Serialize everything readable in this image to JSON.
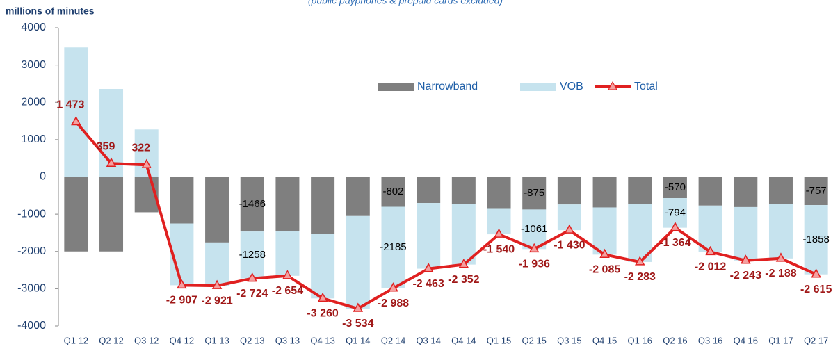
{
  "chart_data": {
    "type": "bar",
    "subtitle": "(public payphones & prepaid cards excluded)",
    "y_label": "millions of minutes",
    "categories": [
      "Q1 12",
      "Q2 12",
      "Q3 12",
      "Q4 12",
      "Q1 13",
      "Q2 13",
      "Q3 13",
      "Q4 13",
      "Q1 14",
      "Q2 14",
      "Q3 14",
      "Q4 14",
      "Q1 15",
      "Q2 15",
      "Q3 15",
      "Q4 15",
      "Q1 16",
      "Q2 16",
      "Q3 16",
      "Q4 16",
      "Q1 17",
      "Q2 17"
    ],
    "series": [
      {
        "name": "Narrowband",
        "color": "#7f7f7f",
        "values": [
          -2000,
          -2000,
          -950,
          -1250,
          -1760,
          -1466,
          -1450,
          -1530,
          -1050,
          -802,
          -700,
          -720,
          -840,
          -875,
          -740,
          -820,
          -720,
          -570,
          -770,
          -810,
          -720,
          -757
        ],
        "value_labels": [
          null,
          null,
          null,
          null,
          null,
          "-1466",
          null,
          null,
          null,
          "-802",
          null,
          null,
          null,
          "-875",
          null,
          null,
          null,
          "-570",
          null,
          null,
          null,
          "-757"
        ]
      },
      {
        "name": "VOB",
        "color": "#c6e3ee",
        "values": [
          3473,
          2359,
          1272,
          -1657,
          -1161,
          -1258,
          -1204,
          -1730,
          -2484,
          -2185,
          -1763,
          -1632,
          -700,
          -1061,
          -690,
          -1265,
          -1563,
          -794,
          -1242,
          -1433,
          -1468,
          -1858
        ],
        "value_labels": [
          null,
          null,
          null,
          null,
          null,
          "-1258",
          null,
          null,
          null,
          "-2185",
          null,
          null,
          null,
          "-1061",
          null,
          null,
          null,
          "-794",
          null,
          null,
          null,
          "-1858"
        ]
      },
      {
        "name": "Total",
        "type": "line",
        "color": "#e02020",
        "values": [
          1473,
          359,
          322,
          -2907,
          -2921,
          -2724,
          -2654,
          -3260,
          -3534,
          -2988,
          -2463,
          -2352,
          -1540,
          -1936,
          -1430,
          -2085,
          -2283,
          -1364,
          -2012,
          -2243,
          -2188,
          -2615
        ],
        "value_labels": [
          "1 473",
          "359",
          "322",
          "-2 907",
          "-2 921",
          "-2 724",
          "-2 654",
          "-3 260",
          "-3 534",
          "-2 988",
          "-2 463",
          "-2 352",
          "-1 540",
          "-1 936",
          "-1 430",
          "-2 085",
          "-2 283",
          "-1 364",
          "-2 012",
          "-2 243",
          "-2 188",
          "-2 615"
        ]
      }
    ],
    "ylim": [
      -4000,
      4000
    ],
    "yticks": [
      -4000,
      -3000,
      -2000,
      -1000,
      0,
      1000,
      2000,
      3000,
      4000
    ],
    "legend": "top"
  }
}
